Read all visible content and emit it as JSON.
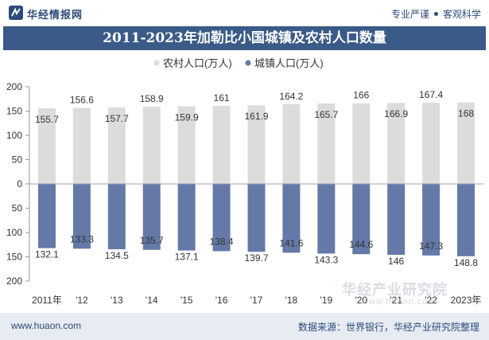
{
  "header": {
    "brand": "华经情报网",
    "slogan_left": "专业严谨",
    "slogan_right": "客观科学"
  },
  "footer": {
    "site": "www.huaon.com",
    "source": "数据来源：世界银行，华经产业研究院整理"
  },
  "watermark": {
    "brand": "华经产业研究院",
    "url": "www.huaon.com"
  },
  "colors": {
    "rural": "#dcdcdc",
    "urban": "#6479a8",
    "title_bg": "#3a5a87",
    "brand": "#2b4b7a"
  },
  "chart_data": {
    "type": "bar",
    "title": "2011-2023年加勒比小国城镇及农村人口数量",
    "categories": [
      "2011年",
      "'12",
      "'13",
      "'14",
      "'15",
      "'16",
      "'17",
      "'18",
      "'19",
      "'20",
      "'21",
      "'22",
      "2023年"
    ],
    "series": [
      {
        "name": "农村人口(万人)",
        "values": [
          155.7,
          156.6,
          157.7,
          158.9,
          159.9,
          161,
          161.9,
          164.2,
          165.7,
          166,
          166.9,
          167.4,
          168
        ]
      },
      {
        "name": "城镇人口(万人)",
        "values": [
          132.1,
          133.3,
          134.5,
          135.7,
          137.1,
          138.4,
          139.7,
          141.6,
          143.3,
          144.6,
          146,
          147.3,
          148.8
        ]
      }
    ],
    "note": "城镇人口 is drawn downward from 0; y tick labels show absolute values",
    "yticks": [
      "200",
      "150",
      "100",
      "50",
      "0",
      "50",
      "100",
      "150",
      "200"
    ],
    "ylim": [
      -200,
      200
    ],
    "legend_position": "top",
    "grid": false
  }
}
